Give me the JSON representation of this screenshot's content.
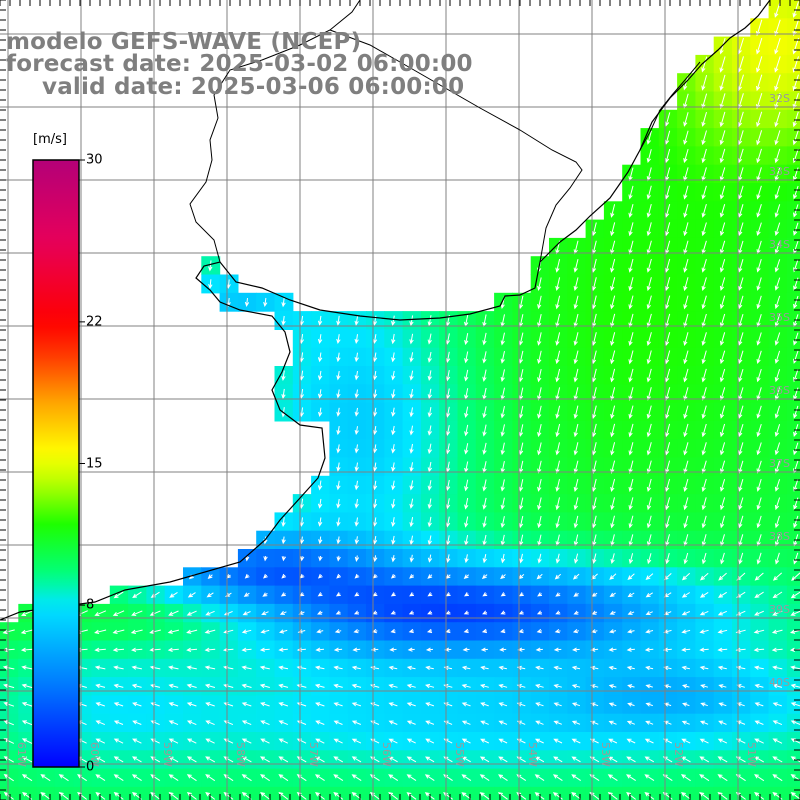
{
  "title": {
    "model": "modelo GEFS-WAVE (NCEP)",
    "forecast": "forecast date: 2025-03-02 06:00:00",
    "valid": "valid date: 2025-03-06 06:00:00"
  },
  "colorbar": {
    "units": "[m/s]",
    "ticks": [
      {
        "label": "30",
        "value": 30
      },
      {
        "label": "22",
        "value": 22
      },
      {
        "label": "15",
        "value": 15
      },
      {
        "label": "8",
        "value": 8
      },
      {
        "label": "0",
        "value": 0
      }
    ],
    "colors": [
      "#0000ff",
      "#0078ff",
      "#00e6ff",
      "#00ff7f",
      "#1eff00",
      "#b4ff00",
      "#ffff00",
      "#ffa500",
      "#ff3200",
      "#ff0000",
      "#e6005a",
      "#b40078"
    ]
  },
  "map": {
    "lat_labels": [
      "32S",
      "33S",
      "34S",
      "35S",
      "36S",
      "37S",
      "38S",
      "39S",
      "40S"
    ],
    "lon_labels": [
      "61W",
      "60W",
      "59W",
      "58W",
      "57W",
      "56W",
      "55W",
      "54W",
      "53W",
      "52W",
      "51W"
    ],
    "land_color": "#ffffff",
    "grid_color": "#808080",
    "coast_color": "#000000",
    "arrow_color": "#ffffff"
  }
}
